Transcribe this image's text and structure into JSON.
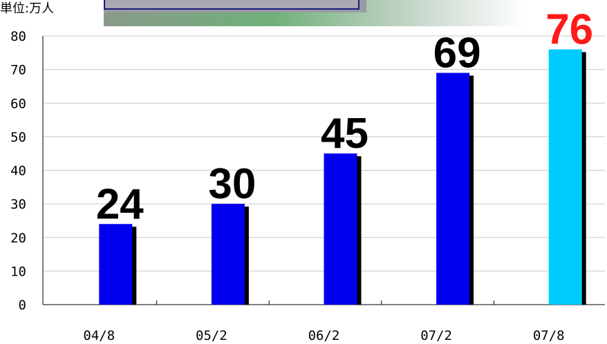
{
  "chart_data": {
    "type": "bar",
    "unit_label": "単位:万人",
    "categories": [
      "04/8",
      "05/2",
      "06/2",
      "07/2",
      "07/8"
    ],
    "values": [
      24,
      30,
      45,
      69,
      76
    ],
    "colors": [
      "#0000ee",
      "#0000ee",
      "#0000ee",
      "#0000ee",
      "#00ccff"
    ],
    "label_colors": [
      "#000000",
      "#000000",
      "#000000",
      "#000000",
      "#ff1a1a"
    ],
    "ylim": [
      0,
      80
    ],
    "yticks": [
      0,
      10,
      20,
      30,
      40,
      50,
      60,
      70,
      80
    ],
    "grid": true
  }
}
